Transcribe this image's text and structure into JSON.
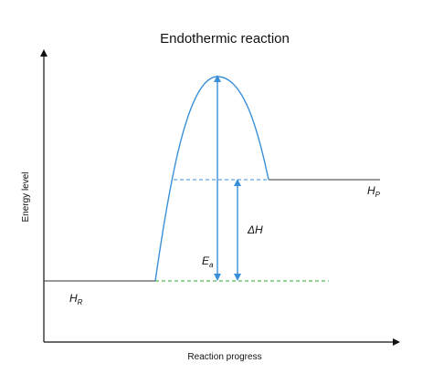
{
  "diagram": {
    "title": "Endothermic reaction",
    "y_axis_label": "Energy level",
    "x_axis_label": "Reaction progress",
    "reactant_label": {
      "symbol": "H",
      "subscript": "R"
    },
    "product_label": {
      "symbol": "H",
      "subscript": "P"
    },
    "activation_energy_label": {
      "symbol": "E",
      "subscript": "a"
    },
    "enthalpy_change_label": "ΔH",
    "colors": {
      "curve": "#3a8fd9",
      "arrow": "#3a8fd9",
      "product_dashed": "#3a8fd9",
      "reactant_dashed": "#2eaa2e",
      "axis": "#111111",
      "level": "#333333"
    }
  }
}
